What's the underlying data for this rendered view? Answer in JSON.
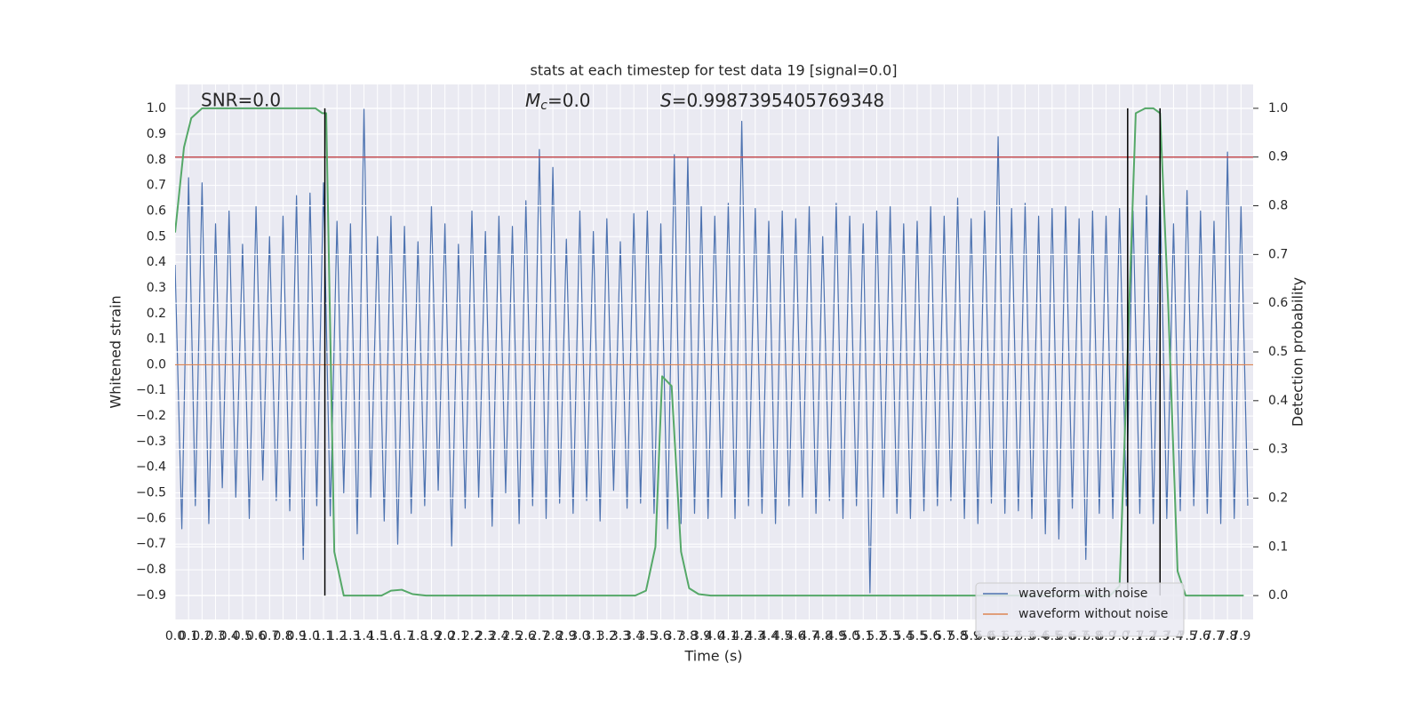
{
  "chart_data": {
    "type": "line",
    "title": "stats at each timestep for test data 19 [signal=0.0]",
    "xlabel": "Time (s)",
    "ylabel": "Whitened strain",
    "y2label": "Detection probability",
    "annotations": [
      {
        "text": "SNR=0.0"
      },
      {
        "symbol": "M",
        "subscript": "c",
        "text": "=0.0"
      },
      {
        "symbol": "S",
        "text": "=0.9987395405769348"
      }
    ],
    "xlim": [
      0,
      7.99
    ],
    "ylim": [
      -0.994,
      1.094
    ],
    "y2lim": [
      -0.049,
      1.049
    ],
    "xticks": [
      {
        "value": 0,
        "label": "0.0"
      },
      0.1,
      0.2,
      0.3,
      0.4,
      0.5,
      0.6,
      0.7,
      0.8,
      0.9,
      {
        "value": 1,
        "label": "1.0"
      },
      1.1,
      1.2,
      1.3,
      1.4,
      1.5,
      1.6,
      1.7,
      1.8,
      1.9,
      {
        "value": 2,
        "label": "2.0"
      },
      2.1,
      2.2,
      2.3,
      2.4,
      2.5,
      2.6,
      2.7,
      2.8,
      2.9,
      {
        "value": 3,
        "label": "3.0"
      },
      3.1,
      3.2,
      3.3,
      3.4,
      3.5,
      3.6,
      3.7,
      3.8,
      3.9,
      {
        "value": 4,
        "label": "4.0"
      },
      4.1,
      4.2,
      4.3,
      4.4,
      4.5,
      4.6,
      4.7,
      4.8,
      4.9,
      {
        "value": 5,
        "label": "5.0"
      },
      5.1,
      5.2,
      5.3,
      5.4,
      5.5,
      5.6,
      5.7,
      5.8,
      5.9,
      {
        "value": 6,
        "label": "6.0"
      },
      6.1,
      6.2,
      6.3,
      6.4,
      6.5,
      6.6,
      6.7,
      6.8,
      6.9,
      {
        "value": 7,
        "label": "7.0"
      },
      7.1,
      7.2,
      7.3,
      7.4,
      7.5,
      7.6,
      7.7,
      7.8,
      7.9
    ],
    "yticks": [
      {
        "value": -0.9,
        "label": "−0.9"
      },
      {
        "value": -0.8,
        "label": "−0.8"
      },
      {
        "value": -0.7,
        "label": "−0.7"
      },
      {
        "value": -0.6,
        "label": "−0.6"
      },
      {
        "value": -0.5,
        "label": "−0.5"
      },
      {
        "value": -0.4,
        "label": "−0.4"
      },
      {
        "value": -0.3,
        "label": "−0.3"
      },
      {
        "value": -0.2,
        "label": "−0.2"
      },
      {
        "value": -0.1,
        "label": "−0.1"
      },
      {
        "value": 0,
        "label": "0.0"
      },
      0.1,
      0.2,
      0.3,
      0.4,
      0.5,
      0.6,
      0.7,
      0.8,
      0.9,
      {
        "value": 1,
        "label": "1.0"
      }
    ],
    "y2ticks": [
      {
        "value": 0,
        "label": "0.0"
      },
      0.1,
      0.2,
      0.3,
      0.4,
      0.5,
      0.6,
      0.7,
      0.8,
      0.9,
      {
        "value": 1,
        "label": "1.0"
      }
    ],
    "grid": true,
    "background": "#eaeaf2",
    "legend": "lower right",
    "threshold": {
      "value": 0.9,
      "axis": "y2",
      "color": "#c44e52"
    },
    "vlines": {
      "x": [
        1.11,
        7.06,
        7.3
      ],
      "from": 0,
      "to": 1,
      "axis": "y2",
      "color": "#000000"
    },
    "series": [
      {
        "name": "waveform with noise",
        "color": "#4c72b0",
        "x": [
          0,
          0.05,
          0.1,
          0.15,
          0.2,
          0.25,
          0.3,
          0.35,
          0.4,
          0.45,
          0.5,
          0.55,
          0.6,
          0.65,
          0.7,
          0.75,
          0.8,
          0.85,
          0.9,
          0.95,
          1,
          1.05,
          1.1,
          1.15,
          1.2,
          1.25,
          1.3,
          1.35,
          1.4,
          1.45,
          1.5,
          1.55,
          1.6,
          1.65,
          1.7,
          1.75,
          1.8,
          1.85,
          1.9,
          1.95,
          2,
          2.05,
          2.1,
          2.15,
          2.2,
          2.25,
          2.3,
          2.35,
          2.4,
          2.45,
          2.5,
          2.55,
          2.6,
          2.65,
          2.7,
          2.75,
          2.8,
          2.85,
          2.9,
          2.95,
          3,
          3.05,
          3.1,
          3.15,
          3.2,
          3.25,
          3.3,
          3.35,
          3.4,
          3.45,
          3.5,
          3.55,
          3.6,
          3.65,
          3.7,
          3.75,
          3.8,
          3.85,
          3.9,
          3.95,
          4,
          4.05,
          4.1,
          4.15,
          4.2,
          4.25,
          4.3,
          4.35,
          4.4,
          4.45,
          4.5,
          4.55,
          4.6,
          4.65,
          4.7,
          4.75,
          4.8,
          4.85,
          4.9,
          4.95,
          5,
          5.05,
          5.1,
          5.15,
          5.2,
          5.25,
          5.3,
          5.35,
          5.4,
          5.45,
          5.5,
          5.55,
          5.6,
          5.65,
          5.7,
          5.75,
          5.8,
          5.85,
          5.9,
          5.95,
          6,
          6.05,
          6.1,
          6.15,
          6.2,
          6.25,
          6.3,
          6.35,
          6.4,
          6.45,
          6.5,
          6.55,
          6.6,
          6.65,
          6.7,
          6.75,
          6.8,
          6.85,
          6.9,
          6.95,
          7,
          7.05,
          7.1,
          7.15,
          7.2,
          7.25,
          7.3,
          7.35,
          7.4,
          7.45,
          7.5,
          7.55,
          7.6,
          7.65,
          7.7,
          7.75,
          7.8,
          7.85,
          7.9,
          7.95
        ],
        "values": [
          0.39,
          -0.64,
          0.73,
          -0.55,
          0.71,
          -0.62,
          0.55,
          -0.48,
          0.6,
          -0.52,
          0.47,
          -0.6,
          0.62,
          -0.45,
          0.5,
          -0.53,
          0.58,
          -0.57,
          0.66,
          -0.76,
          0.67,
          -0.55,
          0.71,
          -0.59,
          0.56,
          -0.5,
          0.55,
          -0.66,
          1.0,
          -0.52,
          0.5,
          -0.61,
          0.58,
          -0.7,
          0.54,
          -0.58,
          0.48,
          -0.55,
          0.62,
          -0.49,
          0.55,
          -0.71,
          0.47,
          -0.56,
          0.6,
          -0.52,
          0.52,
          -0.63,
          0.58,
          -0.5,
          0.54,
          -0.62,
          0.64,
          -0.55,
          0.84,
          -0.6,
          0.77,
          -0.54,
          0.49,
          -0.58,
          0.6,
          -0.53,
          0.52,
          -0.61,
          0.57,
          -0.49,
          0.48,
          -0.56,
          0.59,
          -0.54,
          0.6,
          -0.58,
          0.55,
          -0.64,
          0.82,
          -0.62,
          0.81,
          -0.58,
          0.62,
          -0.6,
          0.58,
          -0.52,
          0.63,
          -0.6,
          0.95,
          -0.55,
          0.61,
          -0.58,
          0.56,
          -0.62,
          0.6,
          -0.55,
          0.57,
          -0.52,
          0.62,
          -0.58,
          0.5,
          -0.53,
          0.63,
          -0.6,
          0.58,
          -0.55,
          0.55,
          -0.89,
          0.6,
          -0.52,
          0.62,
          -0.58,
          0.55,
          -0.6,
          0.56,
          -0.57,
          0.62,
          -0.55,
          0.58,
          -0.53,
          0.65,
          -0.6,
          0.57,
          -0.62,
          0.6,
          -0.54,
          0.89,
          -0.58,
          0.61,
          -0.57,
          0.63,
          -0.6,
          0.58,
          -0.66,
          0.61,
          -0.68,
          0.62,
          -0.56,
          0.57,
          -0.76,
          0.6,
          -0.58,
          0.58,
          -0.6,
          0.61,
          -0.55,
          0.6,
          -0.58,
          0.66,
          -0.62,
          0.7,
          -0.6,
          0.55,
          -0.57,
          0.68,
          -0.55,
          0.6,
          -0.58,
          0.56,
          -0.62,
          0.83,
          -0.6,
          0.62,
          -0.55
        ]
      },
      {
        "name": "waveform without noise",
        "color": "#dd8452",
        "x": [
          0,
          7.99
        ],
        "values": [
          0,
          0
        ]
      },
      {
        "color": "#55a868",
        "axis": "y2",
        "x": [
          0,
          0.066,
          0.12,
          0.2,
          1.04,
          1.09,
          1.12,
          1.18,
          1.25,
          1.53,
          1.6,
          1.68,
          1.76,
          1.86,
          3.41,
          3.49,
          3.56,
          3.61,
          3.68,
          3.75,
          3.81,
          3.88,
          3.97,
          6.93,
          7.0,
          7.06,
          7.12,
          7.19,
          7.25,
          7.3,
          7.36,
          7.43,
          7.49,
          7.92
        ],
        "values": [
          0.745,
          0.92,
          0.98,
          1.0,
          1.0,
          0.99,
          0.99,
          0.09,
          0.0,
          0.0,
          0.01,
          0.012,
          0.003,
          0.0,
          0.0,
          0.01,
          0.1,
          0.45,
          0.43,
          0.09,
          0.015,
          0.003,
          0.0,
          0.0,
          0.02,
          0.5,
          0.99,
          1.0,
          1.0,
          0.99,
          0.6,
          0.05,
          0.0,
          0.0
        ]
      }
    ]
  }
}
